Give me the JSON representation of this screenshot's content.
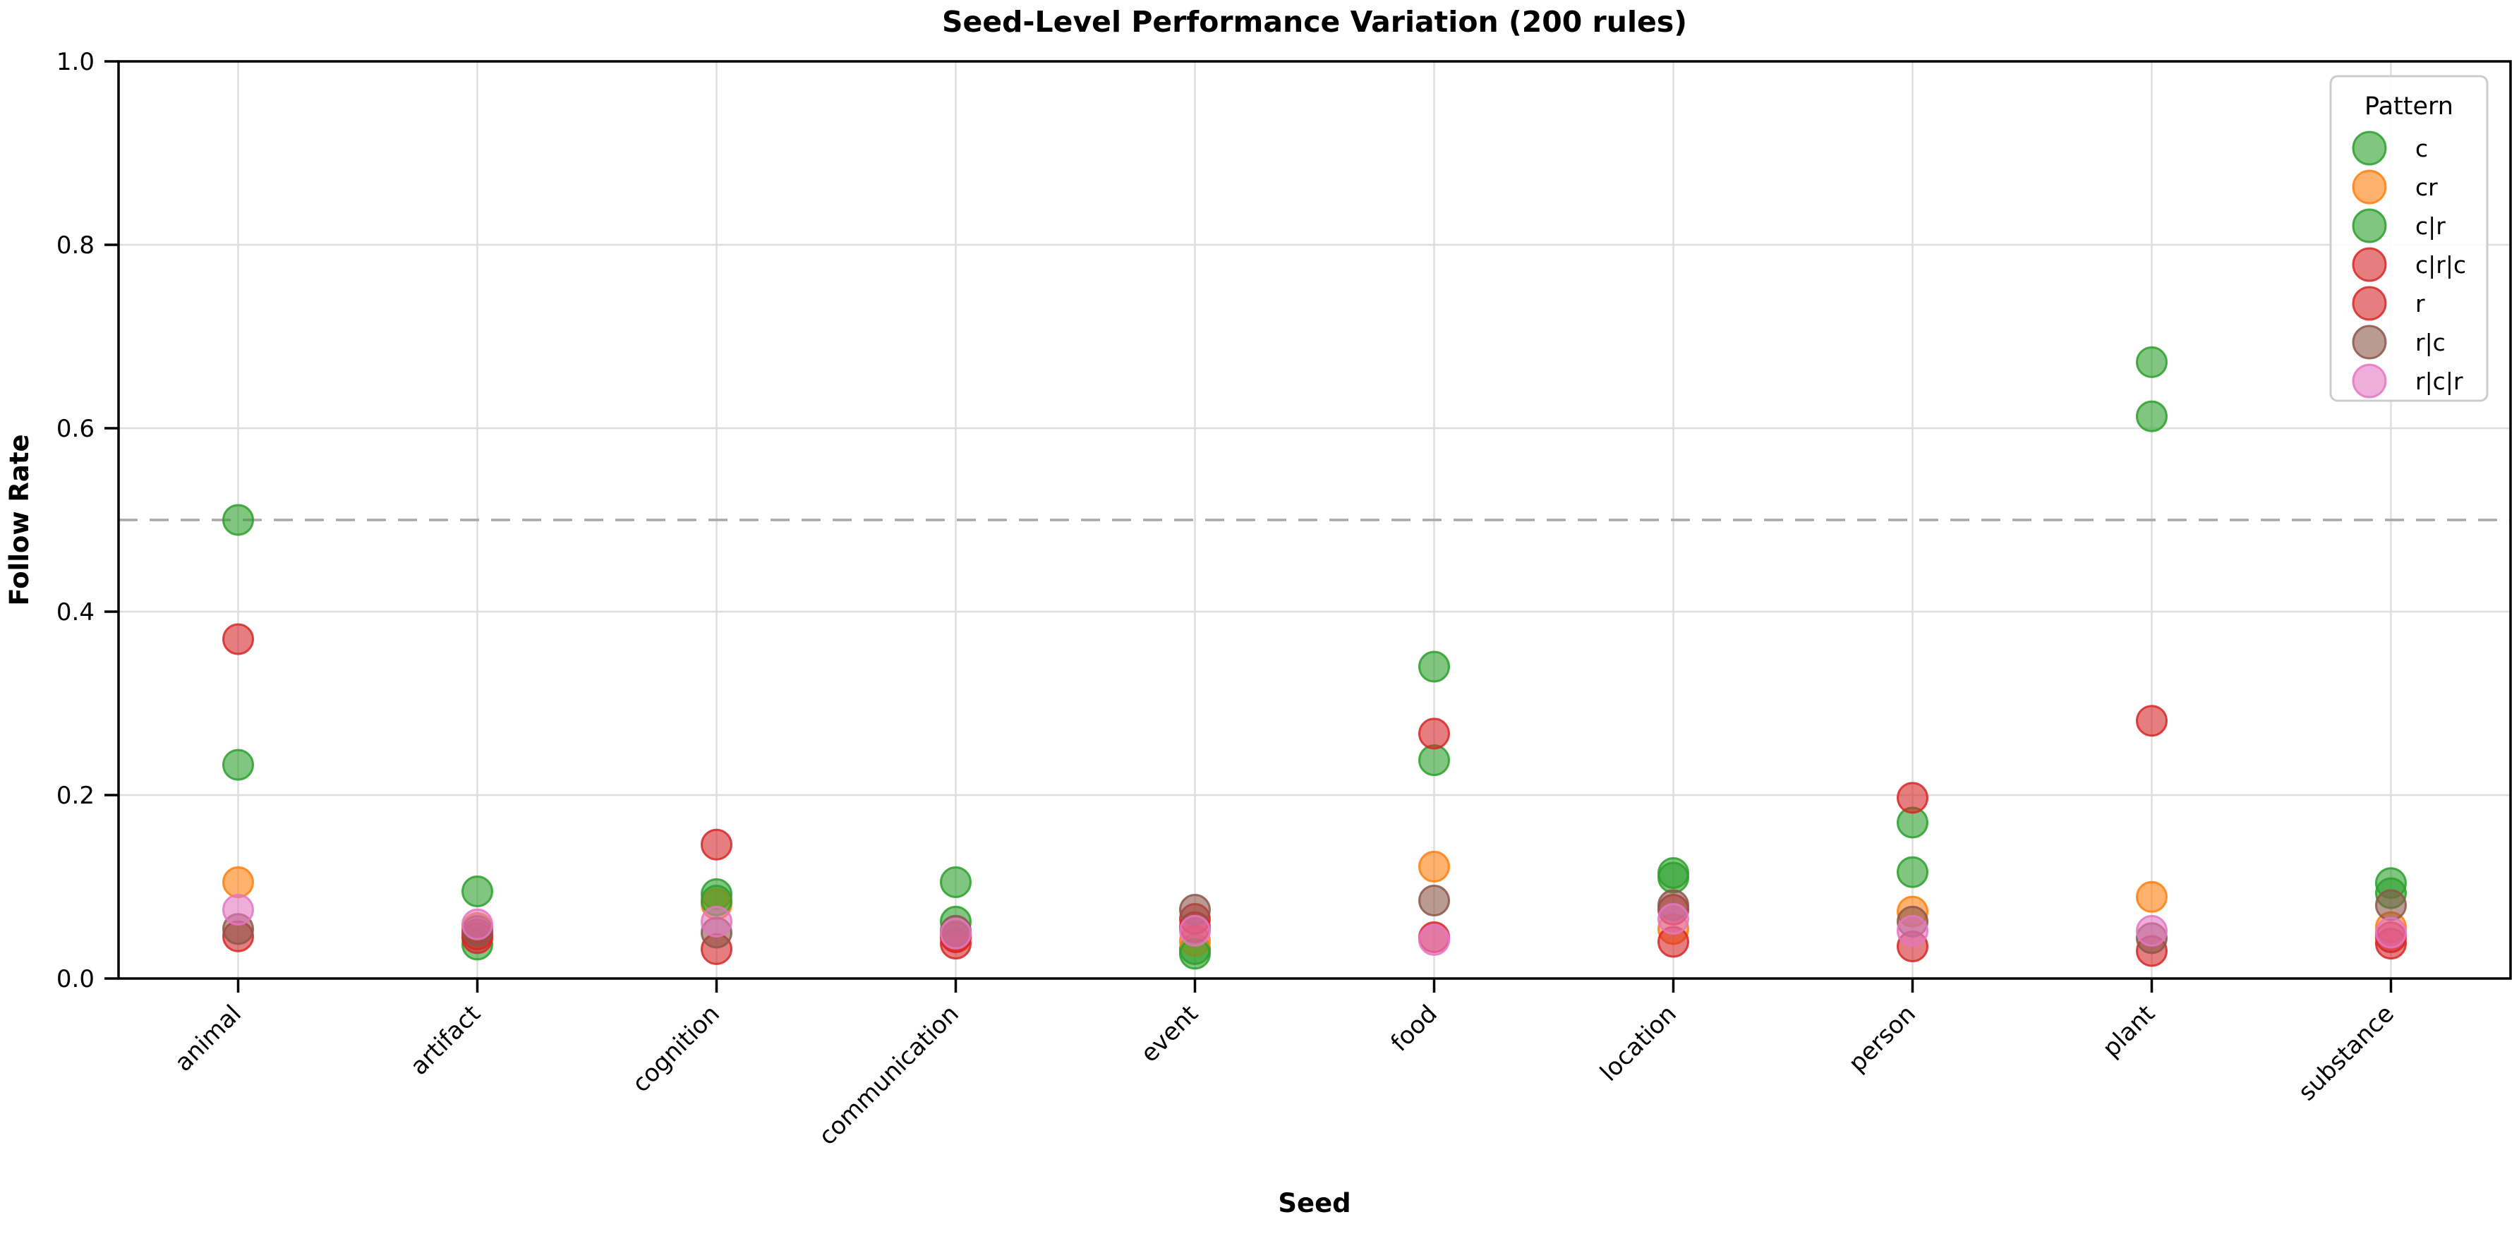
{
  "figure": {
    "background": "#ffffff"
  },
  "chart_data": {
    "type": "scatter",
    "title": "Seed-Level Performance Variation (200 rules)",
    "xlabel": "Seed",
    "ylabel": "Follow Rate",
    "categories": [
      "animal",
      "artifact",
      "cognition",
      "communication",
      "event",
      "food",
      "location",
      "person",
      "plant",
      "substance"
    ],
    "ylim": [
      0.0,
      1.0
    ],
    "yticks": [
      0.0,
      0.2,
      0.4,
      0.6,
      0.8,
      1.0
    ],
    "ytick_labels": [
      "0.0",
      "0.2",
      "0.4",
      "0.6",
      "0.8",
      "1.0"
    ],
    "grid": true,
    "gridline_color": "#dedede",
    "reference_line": {
      "y": 0.5,
      "style": "dashed",
      "color": "#a9a9a9"
    },
    "legend": {
      "title": "Pattern",
      "position": "upper right",
      "entries": [
        "c",
        "cr",
        "c|r",
        "c|r|c",
        "r",
        "r|c",
        "r|c|r"
      ]
    },
    "marker": {
      "radius": 21,
      "fill_opacity": 0.6,
      "edge_opacity": 0.85
    },
    "series": [
      {
        "name": "c",
        "color": "#2ca02c",
        "values": [
          0.5,
          0.095,
          0.092,
          0.105,
          0.032,
          0.34,
          0.115,
          0.17,
          0.672,
          0.104
        ]
      },
      {
        "name": "cr",
        "color": "#ff7f0e",
        "values": [
          0.105,
          0.055,
          0.081,
          0.046,
          0.041,
          0.122,
          0.054,
          0.073,
          0.089,
          0.056
        ]
      },
      {
        "name": "c|r",
        "color": "#2ca02c",
        "values": [
          0.233,
          0.037,
          0.085,
          0.062,
          0.027,
          0.238,
          0.11,
          0.116,
          0.613,
          0.093
        ]
      },
      {
        "name": "c|r|c",
        "color": "#d62728",
        "values": [
          0.37,
          0.048,
          0.146,
          0.038,
          0.065,
          0.267,
          0.075,
          0.197,
          0.281,
          0.045
        ]
      },
      {
        "name": "r",
        "color": "#d62728",
        "values": [
          0.046,
          0.044,
          0.032,
          0.045,
          0.056,
          0.045,
          0.04,
          0.035,
          0.03,
          0.038
        ]
      },
      {
        "name": "r|c",
        "color": "#8c564b",
        "values": [
          0.054,
          0.052,
          0.05,
          0.052,
          0.075,
          0.085,
          0.08,
          0.062,
          0.044,
          0.08
        ]
      },
      {
        "name": "r|c|r",
        "color": "#e377c2",
        "values": [
          0.075,
          0.059,
          0.062,
          0.049,
          0.052,
          0.042,
          0.065,
          0.052,
          0.052,
          0.05
        ]
      }
    ]
  }
}
